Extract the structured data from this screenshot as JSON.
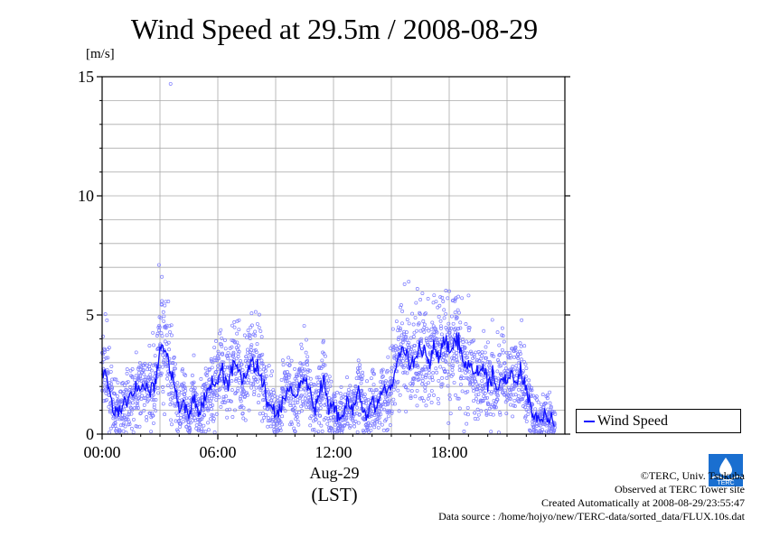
{
  "chart_data": {
    "type": "scatter",
    "title": "Wind Speed at 29.5m / 2008-08-29",
    "ylabel": "[m/s]",
    "xlabel_date": "Aug-29",
    "xlabel_unit": "(LST)",
    "ylim": [
      0,
      15
    ],
    "xlim_hours": [
      0,
      24
    ],
    "x_ticks": [
      "00:00",
      "06:00",
      "12:00",
      "18:00"
    ],
    "y_ticks": [
      "0",
      "5",
      "10",
      "15"
    ],
    "grid": true,
    "legend": {
      "label": "Wind Speed",
      "placement": "right-outside"
    },
    "series": [
      {
        "name": "Wind Speed",
        "color": "#1010ff",
        "mean_profile": [
          [
            0.0,
            2.8
          ],
          [
            0.25,
            2.4
          ],
          [
            0.5,
            1.2
          ],
          [
            0.75,
            0.9
          ],
          [
            1.0,
            1.1
          ],
          [
            1.5,
            1.6
          ],
          [
            2.0,
            2.0
          ],
          [
            2.5,
            1.8
          ],
          [
            2.75,
            2.2
          ],
          [
            3.0,
            3.6
          ],
          [
            3.25,
            3.8
          ],
          [
            3.5,
            2.8
          ],
          [
            3.75,
            2.1
          ],
          [
            4.0,
            1.0
          ],
          [
            4.25,
            1.3
          ],
          [
            4.5,
            0.6
          ],
          [
            4.75,
            1.6
          ],
          [
            5.0,
            0.8
          ],
          [
            5.25,
            1.2
          ],
          [
            5.5,
            1.9
          ],
          [
            5.75,
            2.1
          ],
          [
            6.0,
            2.4
          ],
          [
            6.25,
            2.6
          ],
          [
            6.5,
            2.0
          ],
          [
            6.75,
            2.9
          ],
          [
            7.0,
            3.0
          ],
          [
            7.25,
            2.2
          ],
          [
            7.5,
            2.5
          ],
          [
            7.75,
            3.2
          ],
          [
            8.0,
            2.8
          ],
          [
            8.25,
            2.6
          ],
          [
            8.5,
            1.6
          ],
          [
            8.75,
            1.2
          ],
          [
            9.0,
            0.8
          ],
          [
            9.25,
            0.9
          ],
          [
            9.5,
            1.7
          ],
          [
            9.75,
            2.0
          ],
          [
            10.0,
            1.4
          ],
          [
            10.25,
            2.1
          ],
          [
            10.5,
            2.5
          ],
          [
            10.75,
            1.8
          ],
          [
            11.0,
            1.0
          ],
          [
            11.25,
            1.6
          ],
          [
            11.5,
            2.3
          ],
          [
            11.75,
            1.0
          ],
          [
            12.0,
            1.2
          ],
          [
            12.25,
            0.6
          ],
          [
            12.5,
            0.9
          ],
          [
            12.75,
            1.4
          ],
          [
            13.0,
            1.0
          ],
          [
            13.25,
            1.7
          ],
          [
            13.5,
            1.2
          ],
          [
            13.75,
            0.7
          ],
          [
            14.0,
            1.5
          ],
          [
            14.25,
            1.0
          ],
          [
            14.5,
            1.8
          ],
          [
            14.75,
            1.6
          ],
          [
            15.0,
            2.2
          ],
          [
            15.25,
            2.8
          ],
          [
            15.5,
            3.5
          ],
          [
            15.75,
            3.3
          ],
          [
            16.0,
            3.0
          ],
          [
            16.25,
            3.2
          ],
          [
            16.5,
            3.6
          ],
          [
            16.75,
            3.4
          ],
          [
            17.0,
            3.0
          ],
          [
            17.25,
            3.7
          ],
          [
            17.5,
            3.2
          ],
          [
            17.75,
            3.9
          ],
          [
            18.0,
            3.5
          ],
          [
            18.25,
            3.8
          ],
          [
            18.5,
            4.0
          ],
          [
            18.75,
            2.8
          ],
          [
            19.0,
            3.0
          ],
          [
            19.25,
            2.4
          ],
          [
            19.5,
            2.6
          ],
          [
            19.75,
            2.7
          ],
          [
            20.0,
            2.2
          ],
          [
            20.25,
            2.5
          ],
          [
            20.5,
            2.0
          ],
          [
            20.75,
            2.3
          ],
          [
            21.0,
            2.1
          ],
          [
            21.25,
            2.5
          ],
          [
            21.5,
            2.3
          ],
          [
            21.75,
            2.6
          ],
          [
            22.0,
            1.9
          ],
          [
            22.25,
            1.2
          ],
          [
            22.5,
            0.7
          ],
          [
            22.75,
            0.5
          ],
          [
            23.0,
            0.8
          ],
          [
            23.25,
            0.5
          ],
          [
            23.5,
            0.3
          ]
        ],
        "outliers": [
          [
            3.55,
            14.7
          ],
          [
            2.95,
            7.1
          ],
          [
            3.1,
            6.6
          ],
          [
            15.9,
            6.4
          ],
          [
            16.35,
            6.1
          ],
          [
            18.0,
            6.0
          ]
        ]
      }
    ]
  },
  "credits": {
    "copyright": "©TERC, Univ. Tsukuba",
    "observed": "Observed at TERC Tower site",
    "created": "Created Automatically at 2008-08-29/23:55:47",
    "source": "Data source : /home/hojyo/new/TERC-data/sorted_data/FLUX.10s.dat"
  },
  "logo": {
    "icon": "terc-logo-icon",
    "text": "TERC",
    "color": "#1a6fd0"
  }
}
